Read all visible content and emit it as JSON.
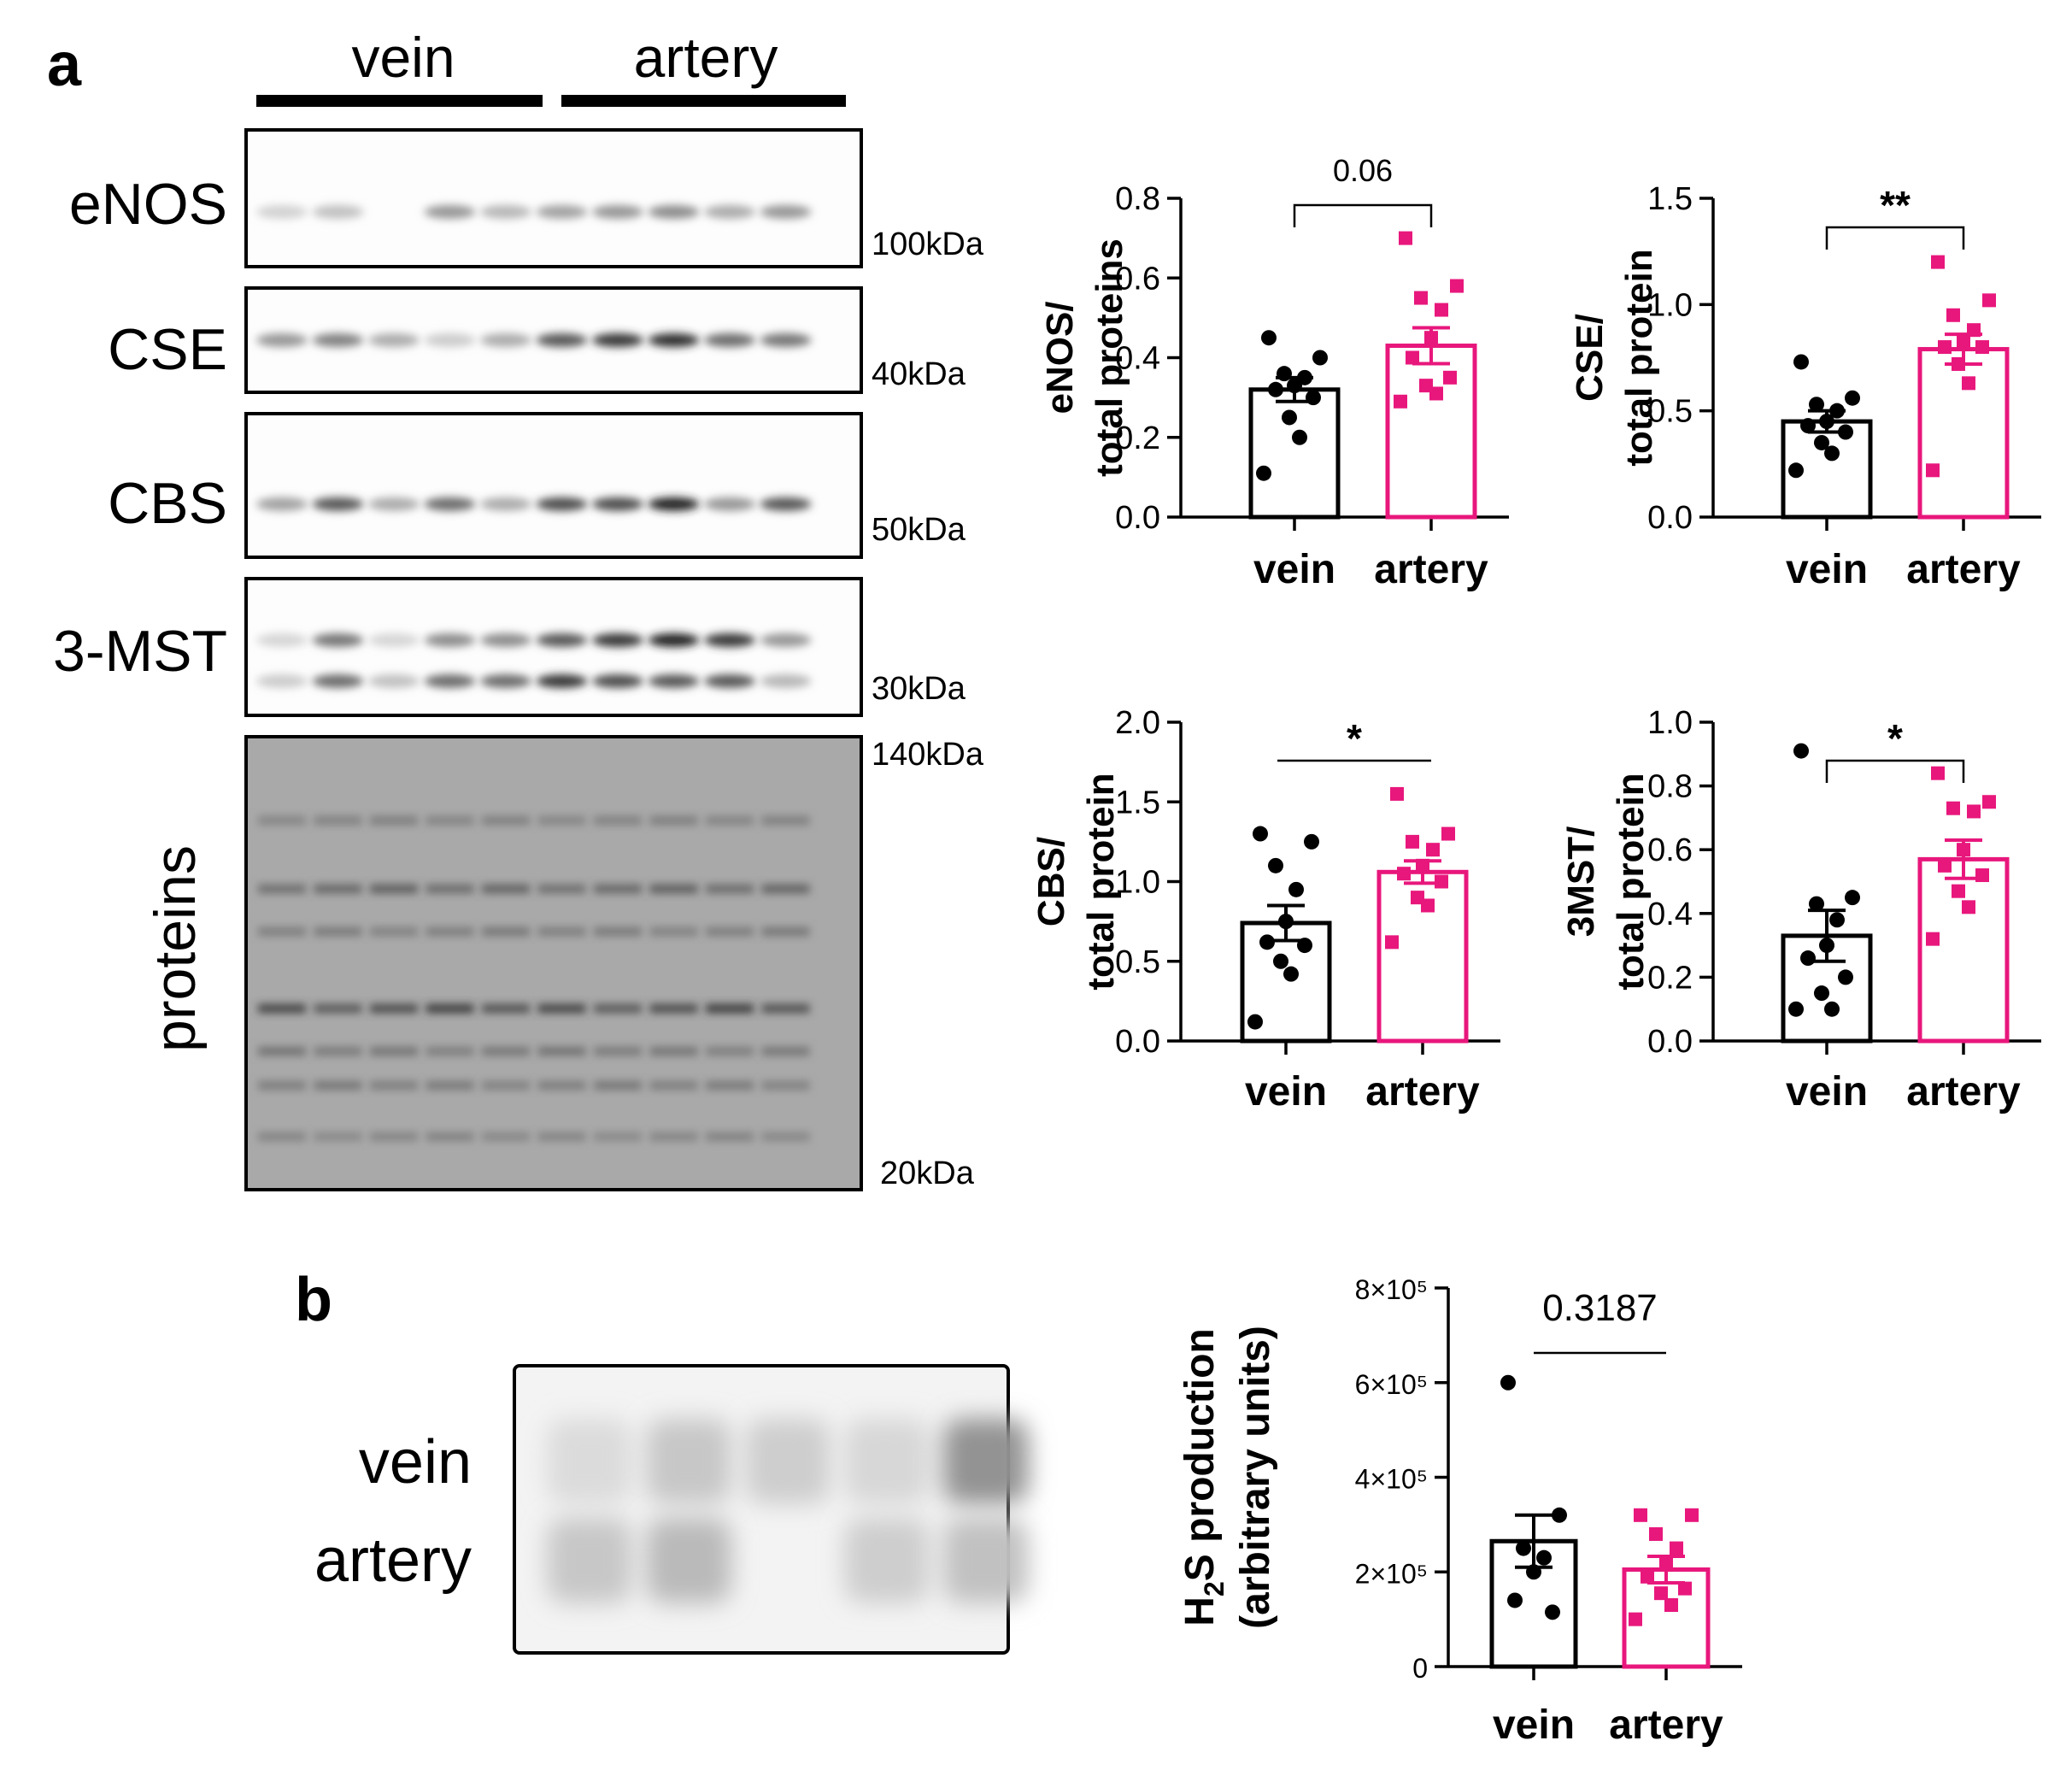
{
  "panel_a": {
    "label": "a",
    "group_labels": [
      "vein",
      "artery"
    ],
    "blots": [
      {
        "name": "eNOS",
        "kda": "100kDa"
      },
      {
        "name": "CSE",
        "kda": "40kDa"
      },
      {
        "name": "CBS",
        "kda": "50kDa"
      },
      {
        "name": "3-MST",
        "kda": "30kDa"
      }
    ],
    "proteins_label": "proteins",
    "proteins_kda_top": "140kDa",
    "proteins_kda_bottom": "20kDa"
  },
  "panel_b": {
    "label": "b",
    "row_labels": [
      "vein",
      "artery"
    ]
  },
  "colors": {
    "vein": "#000000",
    "artery": "#e8177c"
  },
  "chart_data": [
    {
      "type": "bar",
      "id": "enos",
      "ylabel_lines": [
        "eNOS/",
        "total proteins"
      ],
      "categories": [
        "vein",
        "artery"
      ],
      "ylim": [
        0,
        0.8
      ],
      "yticks": [
        "0.0",
        "0.2",
        "0.4",
        "0.6",
        "0.8"
      ],
      "series": [
        {
          "name": "vein",
          "mean": 0.32,
          "sem": 0.03,
          "points": [
            0.45,
            0.4,
            0.36,
            0.35,
            0.33,
            0.32,
            0.3,
            0.25,
            0.2,
            0.11
          ]
        },
        {
          "name": "artery",
          "mean": 0.43,
          "sem": 0.045,
          "points": [
            0.7,
            0.58,
            0.55,
            0.52,
            0.45,
            0.4,
            0.35,
            0.33,
            0.31,
            0.29
          ]
        }
      ],
      "significance": "0.06"
    },
    {
      "type": "bar",
      "id": "cse",
      "ylabel_lines": [
        "CSE/",
        "total protein"
      ],
      "categories": [
        "vein",
        "artery"
      ],
      "ylim": [
        0,
        1.5
      ],
      "yticks": [
        "0.0",
        "0.5",
        "1.0",
        "1.5"
      ],
      "series": [
        {
          "name": "vein",
          "mean": 0.45,
          "sem": 0.05,
          "points": [
            0.73,
            0.56,
            0.53,
            0.5,
            0.45,
            0.43,
            0.4,
            0.35,
            0.3,
            0.22
          ]
        },
        {
          "name": "artery",
          "mean": 0.79,
          "sem": 0.07,
          "points": [
            1.2,
            1.02,
            0.95,
            0.88,
            0.83,
            0.8,
            0.8,
            0.72,
            0.63,
            0.22
          ]
        }
      ],
      "significance": "**"
    },
    {
      "type": "bar",
      "id": "cbs",
      "ylabel_lines": [
        "CBS/",
        "total protein"
      ],
      "categories": [
        "vein",
        "artery"
      ],
      "ylim": [
        0,
        2.0
      ],
      "yticks": [
        "0.0",
        "0.5",
        "1.0",
        "1.5",
        "2.0"
      ],
      "series": [
        {
          "name": "vein",
          "mean": 0.74,
          "sem": 0.11,
          "points": [
            1.3,
            1.25,
            1.1,
            0.95,
            0.75,
            0.62,
            0.6,
            0.5,
            0.42,
            0.12
          ]
        },
        {
          "name": "artery",
          "mean": 1.06,
          "sem": 0.07,
          "points": [
            1.55,
            1.3,
            1.25,
            1.2,
            1.1,
            1.05,
            1.0,
            0.9,
            0.85,
            0.62
          ]
        }
      ],
      "significance": "*"
    },
    {
      "type": "bar",
      "id": "mst",
      "ylabel_lines": [
        "3MST/",
        "total protein"
      ],
      "categories": [
        "vein",
        "artery"
      ],
      "ylim": [
        0,
        1.0
      ],
      "yticks": [
        "0.0",
        "0.2",
        "0.4",
        "0.6",
        "0.8",
        "1.0"
      ],
      "series": [
        {
          "name": "vein",
          "mean": 0.33,
          "sem": 0.08,
          "points": [
            0.91,
            0.45,
            0.43,
            0.38,
            0.3,
            0.26,
            0.2,
            0.15,
            0.1,
            0.1
          ]
        },
        {
          "name": "artery",
          "mean": 0.57,
          "sem": 0.06,
          "points": [
            0.84,
            0.75,
            0.73,
            0.72,
            0.6,
            0.55,
            0.52,
            0.47,
            0.42,
            0.32
          ]
        }
      ],
      "significance": "*"
    },
    {
      "type": "bar",
      "id": "h2s",
      "ylabel_lines": [
        "H2S production",
        "(arbitrary units)"
      ],
      "categories": [
        "vein",
        "artery"
      ],
      "ylim": [
        0,
        800000
      ],
      "yticks": [
        "0",
        "2×10⁵",
        "4×10⁵",
        "6×10⁵",
        "8×10⁵"
      ],
      "series": [
        {
          "name": "vein",
          "mean": 265000,
          "sem": 55000,
          "points": [
            600000,
            320000,
            250000,
            230000,
            200000,
            140000,
            115000
          ]
        },
        {
          "name": "artery",
          "mean": 205000,
          "sem": 28000,
          "points": [
            320000,
            320000,
            280000,
            250000,
            215000,
            190000,
            165000,
            155000,
            130000,
            100000
          ]
        }
      ],
      "significance": "0.3187"
    }
  ]
}
